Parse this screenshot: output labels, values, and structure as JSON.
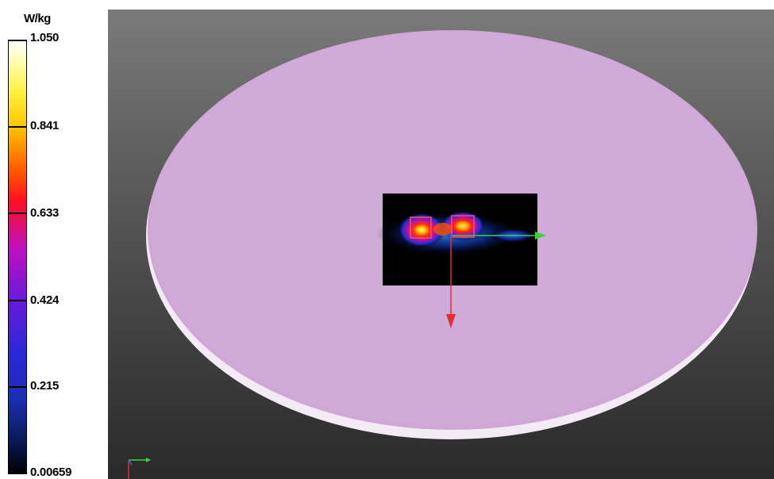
{
  "colorbar": {
    "unit": "W/kg",
    "ticks": [
      "1.050",
      "0.841",
      "0.633",
      "0.424",
      "0.215",
      "0.00659"
    ],
    "max_value": 1.05,
    "min_value": 0.00659
  },
  "scene": {
    "phantom_color": "#cfa8d6",
    "background_top": "#7a7a7a",
    "background_bottom": "#2a2a2a",
    "axis_x_color": "#3ccf3c",
    "axis_y_color": "#e03030",
    "axis_mini_x_color": "#3ccf3c",
    "axis_mini_y_color": "#e03030",
    "icons": [
      "axis-triad-icon",
      "mini-axis-triad-icon"
    ]
  }
}
